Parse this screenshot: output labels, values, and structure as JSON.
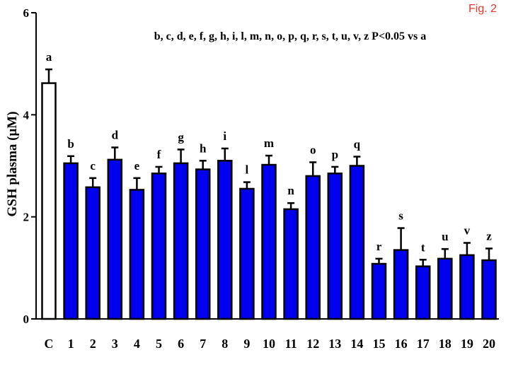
{
  "figure_label": "Fig. 2",
  "chart_data": {
    "type": "bar",
    "ylabel": "GSH plasma (μM)",
    "annotation": "b, c, d, e, f, g, h, i, l, m, n, o, p, q, r, s, t, u, v, z P<0.05 vs a",
    "ylim": [
      0,
      6
    ],
    "yticks": [
      0,
      2,
      4,
      6
    ],
    "grid": false,
    "categories": [
      "C",
      "1",
      "2",
      "3",
      "4",
      "5",
      "6",
      "7",
      "8",
      "9",
      "10",
      "11",
      "12",
      "13",
      "14",
      "15",
      "16",
      "17",
      "18",
      "19",
      "20"
    ],
    "values": [
      4.62,
      3.05,
      2.58,
      3.12,
      2.53,
      2.85,
      3.05,
      2.93,
      3.1,
      2.55,
      3.02,
      2.15,
      2.8,
      2.85,
      3.0,
      1.08,
      1.35,
      1.03,
      1.18,
      1.25,
      1.15
    ],
    "errors": [
      0.27,
      0.14,
      0.18,
      0.24,
      0.23,
      0.13,
      0.27,
      0.17,
      0.24,
      0.13,
      0.18,
      0.12,
      0.27,
      0.13,
      0.18,
      0.1,
      0.43,
      0.13,
      0.19,
      0.24,
      0.23
    ],
    "letters": [
      "a",
      "b",
      "c",
      "d",
      "e",
      "f",
      "g",
      "h",
      "i",
      "l",
      "m",
      "n",
      "o",
      "p",
      "q",
      "r",
      "s",
      "t",
      "u",
      "v",
      "z"
    ],
    "colors": {
      "control": "#ffffff",
      "bars": "#0000ee",
      "edge": "#000000",
      "figure_label": "#e8352b"
    }
  }
}
